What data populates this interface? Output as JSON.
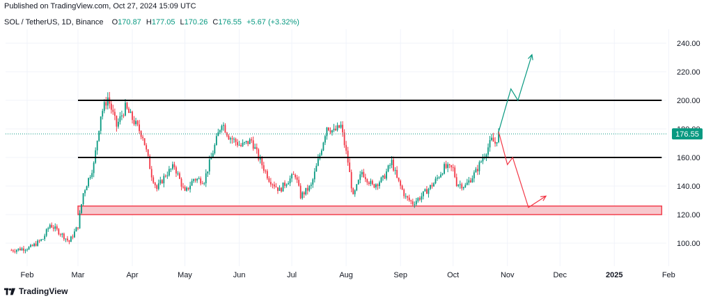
{
  "header": {
    "published": "Published on TradingView.com, Oct 27, 2024 15:09 UTC",
    "symbol": "SOL / TetherUS, 1D, Binance",
    "open_label": "O",
    "open": "170.87",
    "high_label": "H",
    "high": "177.05",
    "low_label": "L",
    "low": "170.26",
    "close_label": "C",
    "close": "176.55",
    "change": "+5.67 (+3.32%)"
  },
  "footer": {
    "brand": "TradingView"
  },
  "colors": {
    "up": "#089981",
    "down": "#f23645",
    "zone_fill": "#f7c6cb",
    "zone_border": "#f23645",
    "level": "#000000",
    "grid": "#f0f3fa"
  },
  "chart_data": {
    "type": "candlestick",
    "title": "SOL / TetherUS, 1D, Binance",
    "y_ticks": [
      "240.00",
      "220.00",
      "200.00",
      "180.00",
      "160.00",
      "140.00",
      "120.00",
      "100.00"
    ],
    "ylim": [
      84,
      248
    ],
    "x_ticks": [
      {
        "label": "Feb",
        "date": "2024-02-01"
      },
      {
        "label": "Mar",
        "date": "2024-03-01"
      },
      {
        "label": "Apr",
        "date": "2024-04-01"
      },
      {
        "label": "May",
        "date": "2024-05-01"
      },
      {
        "label": "Jun",
        "date": "2024-06-01"
      },
      {
        "label": "Jul",
        "date": "2024-07-01"
      },
      {
        "label": "Aug",
        "date": "2024-08-01"
      },
      {
        "label": "Sep",
        "date": "2024-09-01"
      },
      {
        "label": "Oct",
        "date": "2024-10-01"
      },
      {
        "label": "Nov",
        "date": "2024-11-01"
      },
      {
        "label": "Dec",
        "date": "2024-12-01"
      },
      {
        "label": "2025",
        "date": "2025-01-01",
        "bold": true
      },
      {
        "label": "Feb",
        "date": "2025-02-01"
      }
    ],
    "last_price": "176.55",
    "price_path": [
      [
        "2024-01-23",
        95
      ],
      [
        "2024-02-03",
        97
      ],
      [
        "2024-02-10",
        103
      ],
      [
        "2024-02-14",
        113
      ],
      [
        "2024-02-20",
        107
      ],
      [
        "2024-02-25",
        101
      ],
      [
        "2024-03-01",
        112
      ],
      [
        "2024-03-04",
        135
      ],
      [
        "2024-03-10",
        155
      ],
      [
        "2024-03-14",
        190
      ],
      [
        "2024-03-18",
        202
      ],
      [
        "2024-03-23",
        182
      ],
      [
        "2024-03-28",
        195
      ],
      [
        "2024-04-02",
        185
      ],
      [
        "2024-04-07",
        175
      ],
      [
        "2024-04-12",
        148
      ],
      [
        "2024-04-15",
        138
      ],
      [
        "2024-04-20",
        148
      ],
      [
        "2024-04-25",
        154
      ],
      [
        "2024-05-01",
        135
      ],
      [
        "2024-05-06",
        145
      ],
      [
        "2024-05-12",
        144
      ],
      [
        "2024-05-18",
        168
      ],
      [
        "2024-05-22",
        185
      ],
      [
        "2024-05-26",
        175
      ],
      [
        "2024-06-02",
        168
      ],
      [
        "2024-06-08",
        172
      ],
      [
        "2024-06-12",
        160
      ],
      [
        "2024-06-18",
        145
      ],
      [
        "2024-06-24",
        137
      ],
      [
        "2024-06-28",
        143
      ],
      [
        "2024-07-03",
        148
      ],
      [
        "2024-07-06",
        133
      ],
      [
        "2024-07-12",
        140
      ],
      [
        "2024-07-17",
        162
      ],
      [
        "2024-07-21",
        182
      ],
      [
        "2024-07-25",
        178
      ],
      [
        "2024-07-29",
        182
      ],
      [
        "2024-08-02",
        157
      ],
      [
        "2024-08-05",
        132
      ],
      [
        "2024-08-10",
        150
      ],
      [
        "2024-08-16",
        140
      ],
      [
        "2024-08-22",
        145
      ],
      [
        "2024-08-27",
        157
      ],
      [
        "2024-08-30",
        145
      ],
      [
        "2024-09-04",
        132
      ],
      [
        "2024-09-08",
        128
      ],
      [
        "2024-09-13",
        133
      ],
      [
        "2024-09-20",
        142
      ],
      [
        "2024-09-26",
        153
      ],
      [
        "2024-10-01",
        152
      ],
      [
        "2024-10-03",
        142
      ],
      [
        "2024-10-08",
        140
      ],
      [
        "2024-10-14",
        150
      ],
      [
        "2024-10-18",
        160
      ],
      [
        "2024-10-23",
        172
      ],
      [
        "2024-10-25",
        170
      ],
      [
        "2024-10-27",
        176.55
      ]
    ],
    "annotations": {
      "resistance": {
        "price": 200,
        "from": "2024-03-01",
        "to": "2025-02-01"
      },
      "support": {
        "price": 160,
        "from": "2024-03-01",
        "to": "2025-02-01"
      },
      "demand_zone": {
        "low": 120,
        "high": 126,
        "from": "2024-03-01",
        "to": "2025-02-01"
      },
      "bullish_projection": [
        [
          "2024-10-27",
          178
        ],
        [
          "2024-11-03",
          208
        ],
        [
          "2024-11-07",
          200
        ],
        [
          "2024-11-15",
          232
        ]
      ],
      "bearish_projection": [
        [
          "2024-10-27",
          178
        ],
        [
          "2024-11-01",
          155
        ],
        [
          "2024-11-04",
          160
        ],
        [
          "2024-11-13",
          125
        ],
        [
          "2024-11-23",
          133
        ]
      ]
    }
  }
}
